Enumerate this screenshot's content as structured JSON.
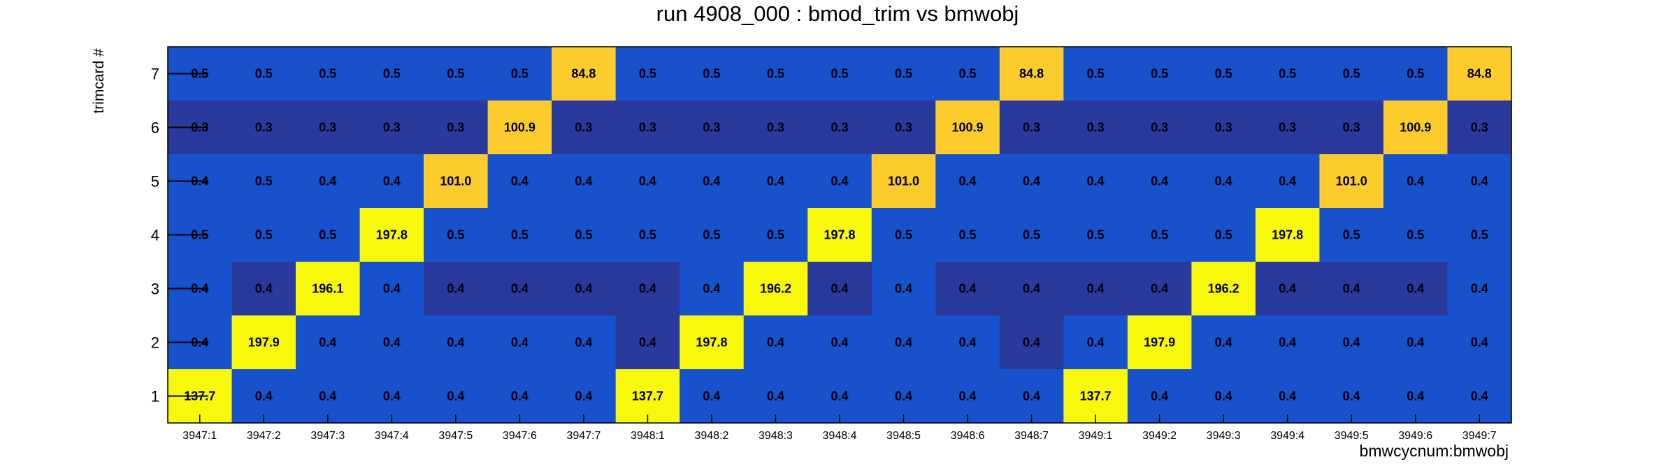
{
  "chart_data": {
    "type": "heatmap",
    "title": "run 4908_000 : bmod_trim vs bmwobj",
    "xlabel": "bmwcycnum:bmwobj",
    "ylabel": "trimcard #",
    "x_categories": [
      "3947:1",
      "3947:2",
      "3947:3",
      "3947:4",
      "3947:5",
      "3947:6",
      "3947:7",
      "3948:1",
      "3948:2",
      "3948:3",
      "3948:4",
      "3948:5",
      "3948:6",
      "3948:7",
      "3949:1",
      "3949:2",
      "3949:3",
      "3949:4",
      "3949:5",
      "3949:6",
      "3949:7"
    ],
    "y_categories": [
      "1",
      "2",
      "3",
      "4",
      "5",
      "6",
      "7"
    ],
    "colors": {
      "low_dark": "#2a3a9c",
      "low": "#1751cc",
      "mid": "#fbcc2c",
      "high": "#f8f80c",
      "grid": "#000000"
    },
    "rows": [
      {
        "y": "7",
        "values": [
          0.5,
          0.5,
          0.5,
          0.5,
          0.5,
          0.5,
          84.8,
          0.5,
          0.5,
          0.5,
          0.5,
          0.5,
          0.5,
          84.8,
          0.5,
          0.5,
          0.5,
          0.5,
          0.5,
          0.5,
          84.8
        ]
      },
      {
        "y": "6",
        "values": [
          0.3,
          0.3,
          0.3,
          0.3,
          0.3,
          100.9,
          0.3,
          0.3,
          0.3,
          0.3,
          0.3,
          0.3,
          100.9,
          0.3,
          0.3,
          0.3,
          0.3,
          0.3,
          0.3,
          100.9,
          0.3
        ]
      },
      {
        "y": "5",
        "values": [
          0.4,
          0.5,
          0.4,
          0.4,
          101.0,
          0.4,
          0.4,
          0.4,
          0.4,
          0.4,
          0.4,
          101.0,
          0.4,
          0.4,
          0.4,
          0.4,
          0.4,
          0.4,
          101.0,
          0.4,
          0.4
        ]
      },
      {
        "y": "4",
        "values": [
          0.5,
          0.5,
          0.5,
          197.8,
          0.5,
          0.5,
          0.5,
          0.5,
          0.5,
          0.5,
          197.8,
          0.5,
          0.5,
          0.5,
          0.5,
          0.5,
          0.5,
          197.8,
          0.5,
          0.5,
          0.5
        ]
      },
      {
        "y": "3",
        "values": [
          0.4,
          0.4,
          196.1,
          0.4,
          0.4,
          0.4,
          0.4,
          0.4,
          0.4,
          196.2,
          0.4,
          0.4,
          0.4,
          0.4,
          0.4,
          0.4,
          196.2,
          0.4,
          0.4,
          0.4,
          0.4
        ]
      },
      {
        "y": "2",
        "values": [
          0.4,
          197.9,
          0.4,
          0.4,
          0.4,
          0.4,
          0.4,
          0.4,
          197.8,
          0.4,
          0.4,
          0.4,
          0.4,
          0.4,
          0.4,
          197.9,
          0.4,
          0.4,
          0.4,
          0.4,
          0.4
        ]
      },
      {
        "y": "1",
        "values": [
          137.7,
          0.4,
          0.4,
          0.4,
          0.4,
          0.4,
          0.4,
          137.7,
          0.4,
          0.4,
          0.4,
          0.4,
          0.4,
          0.4,
          137.7,
          0.4,
          0.4,
          0.4,
          0.4,
          0.4,
          0.4
        ]
      }
    ],
    "cell_shades": [
      [
        "low",
        "low",
        "low",
        "low",
        "low",
        "low",
        "mid",
        "low",
        "low",
        "low",
        "low",
        "low",
        "low",
        "mid",
        "low",
        "low",
        "low",
        "low",
        "low",
        "low",
        "mid"
      ],
      [
        "low_dark",
        "low_dark",
        "low_dark",
        "low_dark",
        "low_dark",
        "mid",
        "low_dark",
        "low_dark",
        "low_dark",
        "low_dark",
        "low_dark",
        "low_dark",
        "mid",
        "low_dark",
        "low_dark",
        "low_dark",
        "low_dark",
        "low_dark",
        "low_dark",
        "mid",
        "low_dark"
      ],
      [
        "low",
        "low",
        "low",
        "low",
        "mid",
        "low",
        "low",
        "low",
        "low",
        "low",
        "low",
        "mid",
        "low",
        "low",
        "low",
        "low",
        "low",
        "low",
        "mid",
        "low",
        "low"
      ],
      [
        "low",
        "low",
        "low",
        "high",
        "low",
        "low",
        "low",
        "low",
        "low",
        "low",
        "high",
        "low",
        "low",
        "low",
        "low",
        "low",
        "low",
        "high",
        "low",
        "low",
        "low"
      ],
      [
        "low",
        "low_dark",
        "high",
        "low",
        "low_dark",
        "low_dark",
        "low_dark",
        "low_dark",
        "low",
        "high",
        "low_dark",
        "low",
        "low_dark",
        "low_dark",
        "low_dark",
        "low_dark",
        "high",
        "low_dark",
        "low_dark",
        "low_dark",
        "low"
      ],
      [
        "low",
        "high",
        "low",
        "low",
        "low",
        "low",
        "low",
        "low_dark",
        "high",
        "low",
        "low",
        "low",
        "low",
        "low_dark",
        "low",
        "high",
        "low",
        "low",
        "low",
        "low",
        "low"
      ],
      [
        "high",
        "low",
        "low",
        "low",
        "low",
        "low",
        "low",
        "high",
        "low",
        "low",
        "low",
        "low",
        "low",
        "low",
        "high",
        "low",
        "low",
        "low",
        "low",
        "low",
        "low"
      ]
    ],
    "grid": false,
    "legend": "none"
  }
}
